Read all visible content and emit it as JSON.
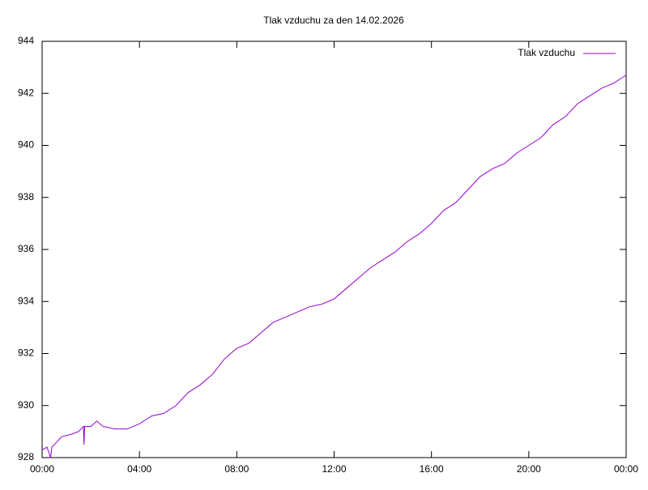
{
  "chart_data": {
    "type": "line",
    "title": "Tlak vzduchu za den 14.02.2026",
    "x": [
      0,
      0.2,
      0.35,
      0.4,
      0.5,
      0.8,
      1.2,
      1.5,
      1.7,
      1.72,
      1.75,
      2,
      2.25,
      2.5,
      3,
      3.5,
      4,
      4.5,
      5,
      5.5,
      6,
      6.5,
      7,
      7.5,
      8,
      8.5,
      9,
      9.5,
      10,
      10.5,
      11,
      11.5,
      12,
      12.5,
      13,
      13.5,
      14,
      14.5,
      15,
      15.5,
      16,
      16.5,
      17,
      17.5,
      18,
      18.5,
      19,
      19.5,
      20,
      20.5,
      21,
      21.5,
      22,
      22.5,
      23,
      23.5,
      24
    ],
    "series": [
      {
        "name": "Tlak vzduchu",
        "color": "#9400d3",
        "values": [
          928.3,
          928.4,
          928.0,
          928.4,
          928.5,
          928.8,
          928.9,
          929.0,
          929.2,
          928.5,
          929.2,
          929.2,
          929.4,
          929.2,
          929.1,
          929.1,
          929.3,
          929.6,
          929.7,
          930.0,
          930.5,
          930.8,
          931.2,
          931.8,
          932.2,
          932.4,
          932.8,
          933.2,
          933.4,
          933.6,
          933.8,
          933.9,
          934.1,
          934.5,
          934.9,
          935.3,
          935.6,
          935.9,
          936.3,
          936.6,
          937.0,
          937.5,
          937.8,
          938.3,
          938.8,
          939.1,
          939.3,
          939.7,
          940.0,
          940.3,
          940.8,
          941.1,
          941.6,
          941.9,
          942.2,
          942.4,
          942.7
        ]
      }
    ],
    "xlim": [
      0,
      24
    ],
    "xticks": [
      {
        "value": 0,
        "label": "00:00"
      },
      {
        "value": 4,
        "label": "04:00"
      },
      {
        "value": 8,
        "label": "08:00"
      },
      {
        "value": 12,
        "label": "12:00"
      },
      {
        "value": 16,
        "label": "16:00"
      },
      {
        "value": 20,
        "label": "20:00"
      },
      {
        "value": 24,
        "label": "00:00"
      }
    ],
    "ylim": [
      928,
      944
    ],
    "yticks": [
      928,
      930,
      932,
      934,
      936,
      938,
      940,
      942,
      944
    ],
    "legend": "top-right"
  }
}
